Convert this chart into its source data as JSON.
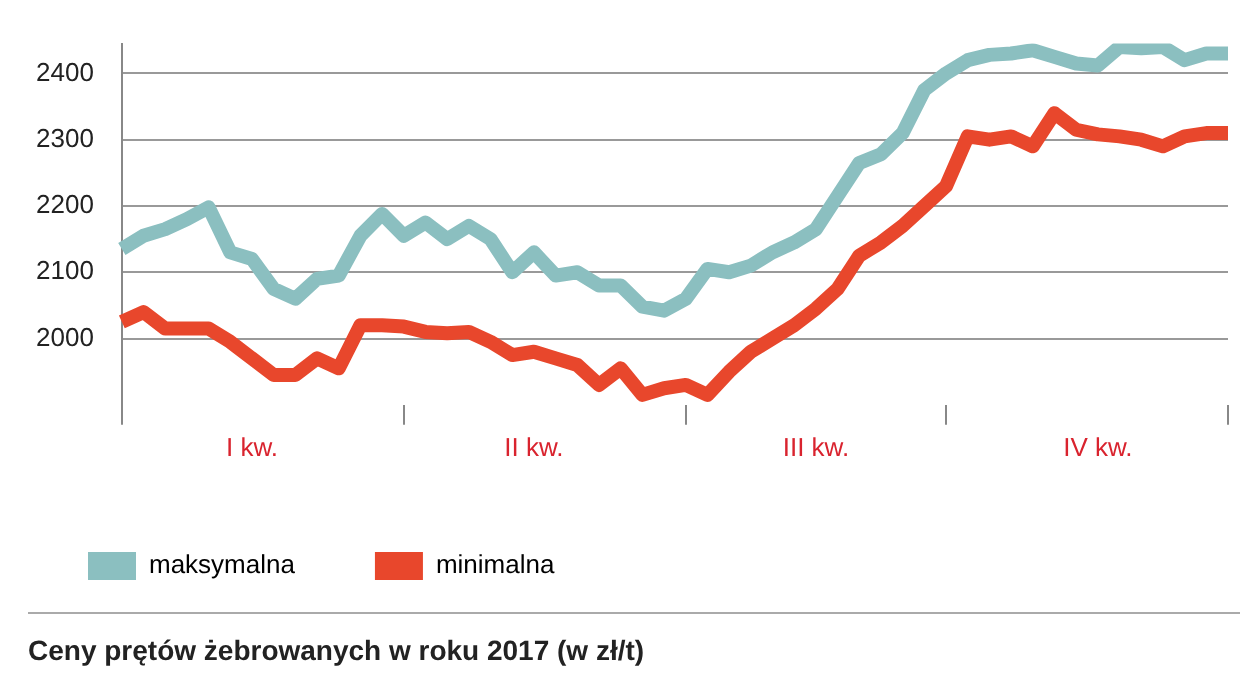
{
  "chart_data": {
    "type": "line",
    "title": "Ceny prętów żebrowanych w roku 2017 (w zł/t)",
    "categories": [
      null,
      null,
      null,
      null,
      null,
      null,
      "I kw.",
      null,
      null,
      null,
      null,
      null,
      null,
      null,
      null,
      null,
      null,
      null,
      null,
      "II kw.",
      null,
      null,
      null,
      null,
      null,
      null,
      null,
      null,
      null,
      null,
      null,
      null,
      "III kw.",
      null,
      null,
      null,
      null,
      null,
      null,
      null,
      null,
      null,
      null,
      null,
      null,
      "IV kw.",
      null,
      null,
      null,
      null,
      null,
      null
    ],
    "series": [
      {
        "name": "maksymalna",
        "color": "#8bbfc0",
        "values": [
          2135,
          2155,
          2165,
          2180,
          2198,
          2130,
          2120,
          2075,
          2060,
          2090,
          2095,
          2155,
          2188,
          2155,
          2175,
          2150,
          2170,
          2150,
          2100,
          2130,
          2095,
          2100,
          2080,
          2080,
          2048,
          2042,
          2060,
          2105,
          2100,
          2110,
          2130,
          2145,
          2165,
          2215,
          2265,
          2278,
          2310,
          2375,
          2400,
          2420,
          2428,
          2430,
          2435,
          2425,
          2415,
          2412,
          2440,
          2438,
          2440,
          2420,
          2430,
          2430
        ]
      },
      {
        "name": "minimalna",
        "color": "#e8472c",
        "values": [
          2025,
          2040,
          2015,
          2015,
          2015,
          1995,
          1970,
          1945,
          1945,
          1970,
          1955,
          2020,
          2020,
          2018,
          2010,
          2008,
          2010,
          1995,
          1975,
          1980,
          1970,
          1960,
          1930,
          1955,
          1915,
          1925,
          1930,
          1915,
          1950,
          1980,
          2000,
          2020,
          2045,
          2075,
          2125,
          2145,
          2170,
          2200,
          2230,
          2305,
          2300,
          2305,
          2290,
          2340,
          2315,
          2308,
          2305,
          2300,
          2290,
          2305,
          2310,
          2310
        ]
      }
    ],
    "ylim": [
      1900,
      2445
    ],
    "yticks": [
      2000,
      2100,
      2200,
      2300,
      2400
    ],
    "grid": "y",
    "legend": "bottom left",
    "marker": "none",
    "line_style": "solid"
  }
}
